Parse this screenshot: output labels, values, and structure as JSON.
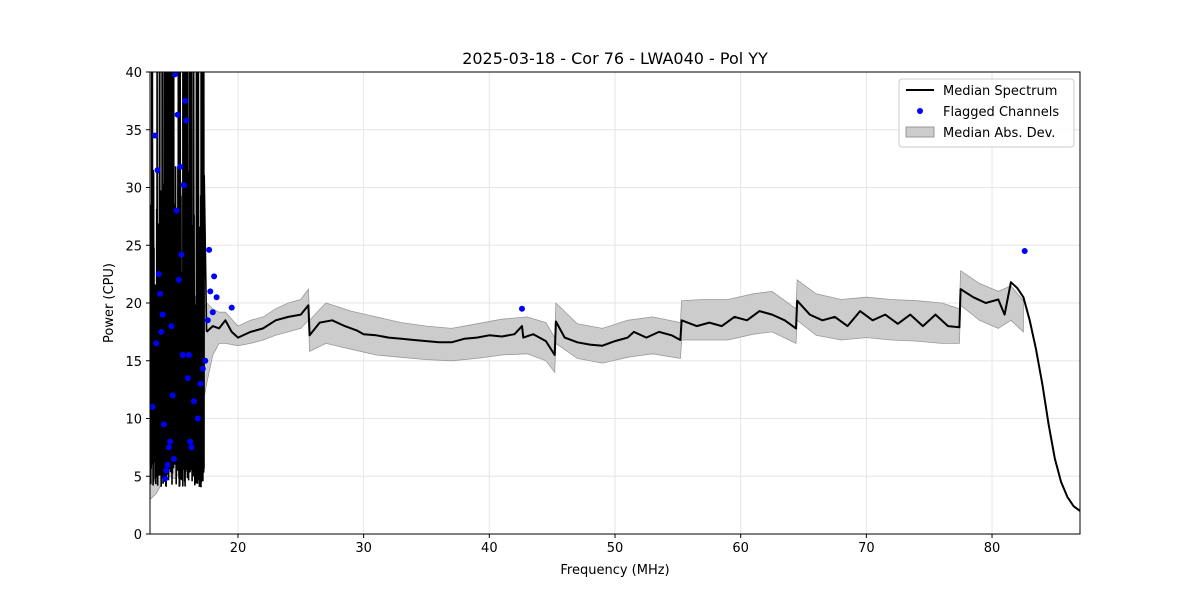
{
  "chart_data": {
    "type": "line",
    "title": "2025-03-18 - Cor 76 - LWA040 - Pol YY",
    "xlabel": "Frequency (MHz)",
    "ylabel": "Power (CPU)",
    "xlim": [
      13,
      87
    ],
    "ylim": [
      0,
      40
    ],
    "xticks": [
      20,
      30,
      40,
      50,
      60,
      70,
      80
    ],
    "yticks": [
      0,
      5,
      10,
      15,
      20,
      25,
      30,
      35,
      40
    ],
    "grid": true,
    "legend_position": "top-right",
    "legend": [
      "Median Spectrum",
      "Flagged Channels",
      "Median Abs. Dev."
    ],
    "colors": {
      "median": "#000000",
      "flagged": "#0000ff",
      "band": "#cccccc",
      "band_edge": "#999999"
    },
    "series": [
      {
        "name": "Median Spectrum",
        "x": [
          17.5,
          18.0,
          18.5,
          19.0,
          19.5,
          20.0,
          21.0,
          22.0,
          23.0,
          24.0,
          25.0,
          25.6,
          25.7,
          26.5,
          27.5,
          28.5,
          29.5,
          30.0,
          31.0,
          32.0,
          33.0,
          34.0,
          35.0,
          36.0,
          37.0,
          38.0,
          39.0,
          40.0,
          41.0,
          42.0,
          42.6,
          42.7,
          43.5,
          44.5,
          45.2,
          45.3,
          46.0,
          47.0,
          48.0,
          49.0,
          50.0,
          51.0,
          51.5,
          52.5,
          53.5,
          54.5,
          55.2,
          55.3,
          56.5,
          57.5,
          58.5,
          59.5,
          60.5,
          61.5,
          62.5,
          63.5,
          64.4,
          64.5,
          65.5,
          66.5,
          67.5,
          68.5,
          69.5,
          70.5,
          71.5,
          72.5,
          73.5,
          74.5,
          75.5,
          76.5,
          77.4,
          77.5,
          78.5,
          79.5,
          80.5,
          81.0,
          81.5,
          82.0,
          82.5,
          83.0,
          83.5,
          84.0,
          84.5,
          85.0,
          85.5,
          86.0,
          86.5,
          87.0
        ],
        "y": [
          17.5,
          18.0,
          17.8,
          18.5,
          17.5,
          17.0,
          17.5,
          17.8,
          18.5,
          18.8,
          19.0,
          19.8,
          17.2,
          18.3,
          18.5,
          18.0,
          17.6,
          17.3,
          17.2,
          17.0,
          16.9,
          16.8,
          16.7,
          16.6,
          16.6,
          16.9,
          17.0,
          17.2,
          17.1,
          17.3,
          18.0,
          17.0,
          17.3,
          16.7,
          15.5,
          18.4,
          17.0,
          16.6,
          16.4,
          16.3,
          16.7,
          17.0,
          17.5,
          17.0,
          17.5,
          17.2,
          16.8,
          18.5,
          18.0,
          18.3,
          18.0,
          18.8,
          18.5,
          19.3,
          19.0,
          18.5,
          17.8,
          20.2,
          19.0,
          18.5,
          18.8,
          18.0,
          19.3,
          18.5,
          19.0,
          18.2,
          19.0,
          18.0,
          19.0,
          18.0,
          17.9,
          21.2,
          20.5,
          20.0,
          20.3,
          19.0,
          21.8,
          21.3,
          20.5,
          18.5,
          16.0,
          13.0,
          9.5,
          6.5,
          4.5,
          3.2,
          2.4,
          2.0
        ]
      },
      {
        "name": "Flagged Channels",
        "x": [
          13.2,
          13.4,
          13.5,
          13.6,
          13.7,
          13.8,
          13.9,
          14.0,
          14.1,
          14.2,
          14.3,
          14.4,
          14.5,
          14.6,
          14.7,
          14.8,
          14.9,
          15.0,
          15.1,
          15.2,
          15.3,
          15.4,
          15.5,
          15.6,
          15.7,
          15.8,
          15.9,
          16.0,
          16.1,
          16.2,
          16.3,
          16.5,
          16.8,
          17.0,
          17.2,
          17.4,
          17.6,
          17.7,
          17.8,
          18.0,
          18.1,
          18.3,
          19.5,
          42.6,
          82.6
        ],
        "y": [
          11.0,
          34.5,
          16.5,
          31.5,
          22.5,
          20.8,
          17.5,
          19.0,
          9.5,
          4.8,
          5.5,
          6.0,
          7.5,
          8.0,
          18.0,
          12.0,
          6.5,
          39.8,
          28.0,
          36.3,
          22.0,
          31.8,
          24.2,
          15.5,
          30.2,
          37.5,
          35.8,
          13.5,
          15.5,
          8.0,
          7.5,
          11.5,
          10.0,
          13.0,
          14.3,
          15.0,
          18.5,
          24.6,
          21.0,
          19.2,
          22.3,
          20.5,
          19.6,
          19.5,
          24.5
        ]
      }
    ],
    "band": {
      "name": "Median Abs. Dev.",
      "x": [
        13.0,
        13.5,
        14.0,
        14.5,
        15.0,
        15.5,
        16.0,
        16.5,
        17.0,
        17.5,
        18.0,
        18.5,
        19.0,
        20.0,
        21.0,
        22.0,
        23.0,
        24.0,
        25.0,
        25.6,
        25.7,
        27.0,
        29.0,
        31.0,
        33.0,
        35.0,
        37.0,
        39.0,
        41.0,
        43.0,
        44.5,
        45.2,
        45.3,
        47.0,
        49.0,
        51.0,
        53.0,
        55.2,
        55.3,
        57.0,
        59.0,
        61.0,
        62.5,
        64.4,
        64.5,
        66.0,
        68.0,
        70.0,
        72.0,
        74.0,
        76.0,
        77.4,
        77.5,
        79.0,
        80.5,
        81.5,
        82.5
      ],
      "lower": [
        3.0,
        3.5,
        4.5,
        5.0,
        4.8,
        5.5,
        7.0,
        8.0,
        10.0,
        13.0,
        15.5,
        16.5,
        16.5,
        16.3,
        16.5,
        16.8,
        17.2,
        17.5,
        17.8,
        18.5,
        15.8,
        16.5,
        16.0,
        15.5,
        15.3,
        15.1,
        15.0,
        15.2,
        15.5,
        15.6,
        15.0,
        14.0,
        16.5,
        15.2,
        14.8,
        15.3,
        15.6,
        15.2,
        16.8,
        16.8,
        16.8,
        17.3,
        17.5,
        16.5,
        18.5,
        17.2,
        16.8,
        17.0,
        16.8,
        16.7,
        16.5,
        16.5,
        19.8,
        18.5,
        17.8,
        18.5,
        17.5
      ],
      "upper": [
        18.0,
        19.0,
        18.5,
        17.5,
        17.0,
        18.0,
        18.0,
        19.0,
        19.0,
        20.0,
        19.5,
        19.2,
        19.2,
        18.0,
        18.5,
        18.8,
        19.5,
        20.0,
        20.3,
        21.2,
        18.5,
        20.0,
        19.3,
        18.8,
        18.3,
        18.0,
        17.8,
        18.2,
        18.6,
        18.8,
        18.3,
        17.0,
        20.0,
        18.2,
        17.8,
        18.5,
        18.8,
        18.3,
        20.2,
        20.3,
        20.3,
        20.8,
        21.0,
        19.5,
        22.0,
        20.8,
        20.3,
        20.5,
        20.3,
        20.2,
        20.0,
        19.5,
        22.8,
        21.7,
        21.0,
        21.5,
        20.2
      ]
    },
    "rfi_region": {
      "x_range": [
        13.0,
        17.3
      ],
      "description": "dense black vertical spikes from ~4 to above 40"
    }
  }
}
